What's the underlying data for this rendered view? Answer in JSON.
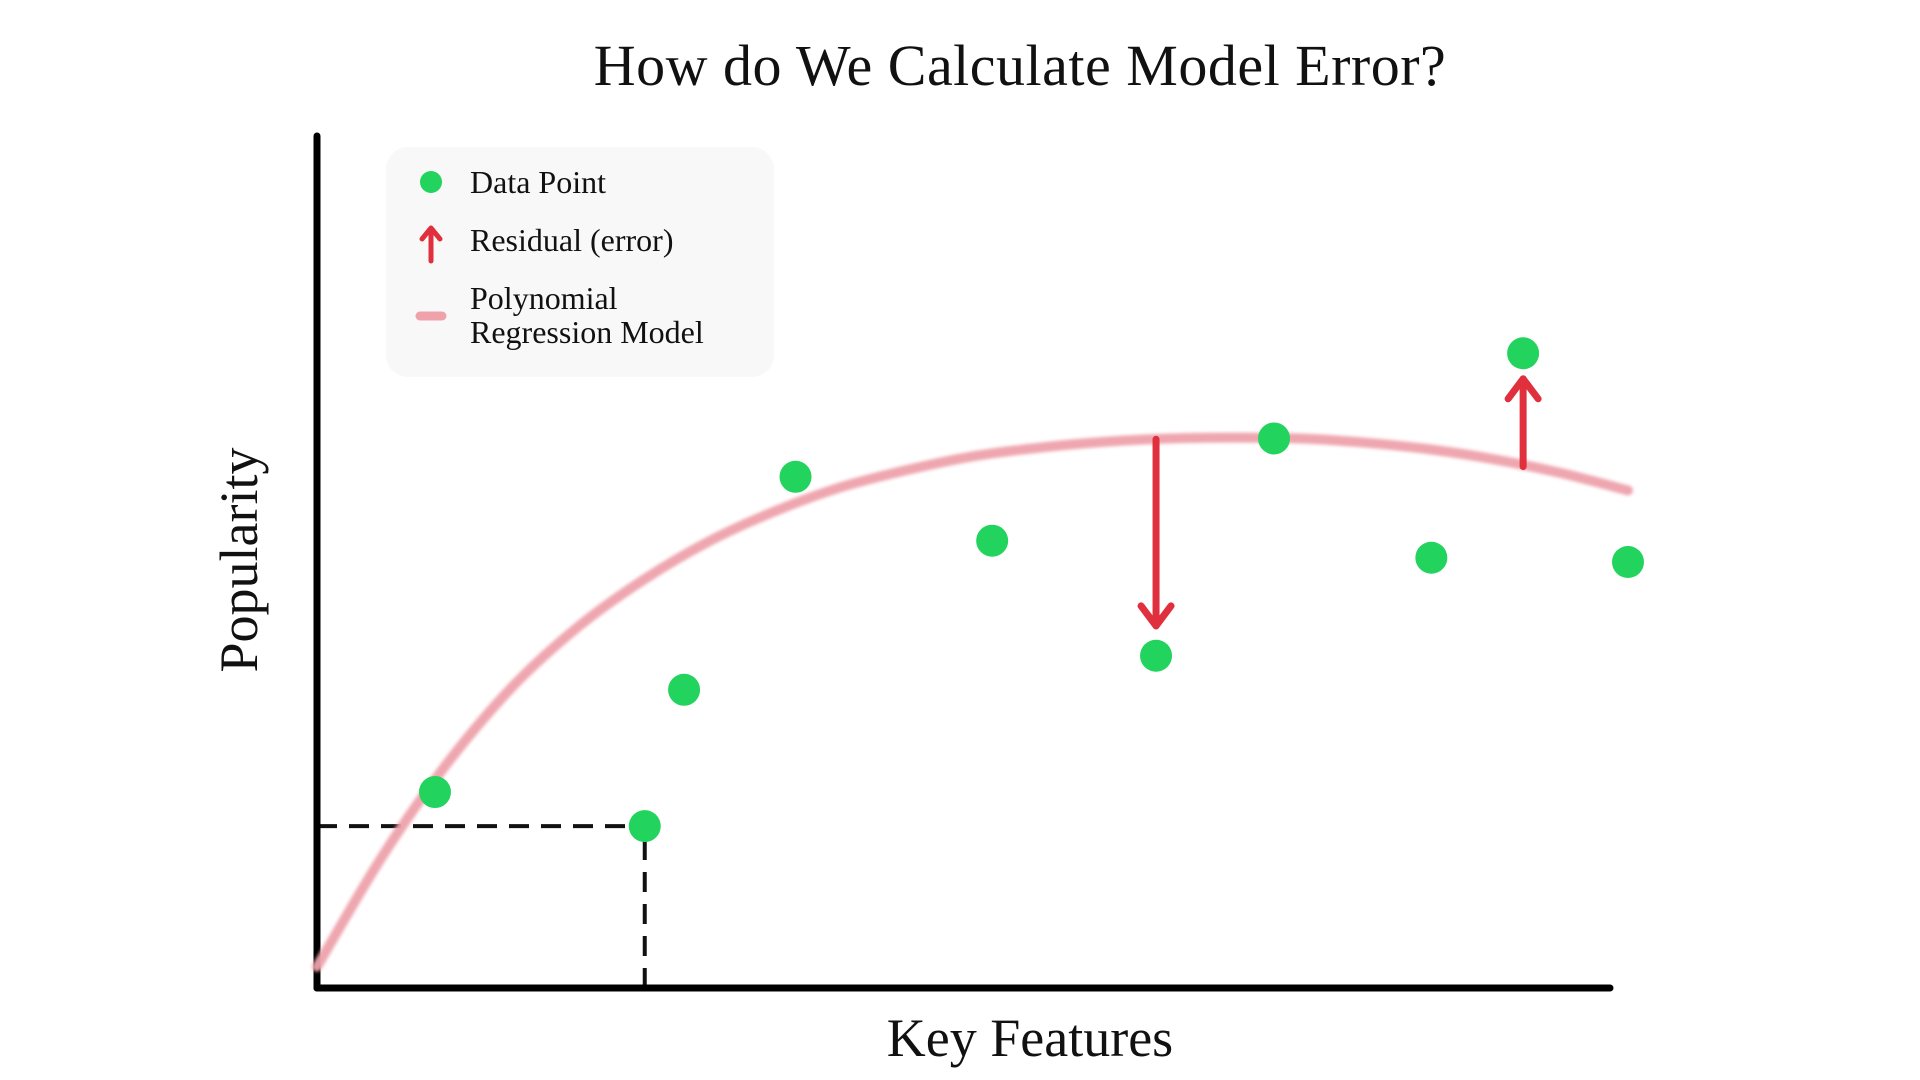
{
  "chart_data": {
    "type": "scatter",
    "title": "How do We Calculate Model Error?",
    "xlabel": "Key Features",
    "ylabel": "Popularity",
    "xlim": [
      0,
      10
    ],
    "ylim": [
      0,
      10
    ],
    "grid": false,
    "legend_position": "top-left",
    "legend": [
      {
        "label": "Data Point",
        "marker": "dot",
        "color": "#22d35e"
      },
      {
        "label": "Residual (error)",
        "marker": "arrow",
        "color": "#e0303e"
      },
      {
        "label": "Polynomial Regression Model",
        "marker": "line",
        "color": "#eea2ab"
      }
    ],
    "series": [
      {
        "name": "Data Point",
        "kind": "scatter",
        "color": "#22d35e",
        "points": [
          {
            "x": 0.9,
            "y": 2.3
          },
          {
            "x": 2.5,
            "y": 1.9
          },
          {
            "x": 2.8,
            "y": 3.5
          },
          {
            "x": 3.65,
            "y": 6.0
          },
          {
            "x": 5.15,
            "y": 5.25
          },
          {
            "x": 6.4,
            "y": 3.9
          },
          {
            "x": 7.3,
            "y": 6.45
          },
          {
            "x": 8.5,
            "y": 5.05
          },
          {
            "x": 9.2,
            "y": 7.45
          },
          {
            "x": 10.0,
            "y": 5.0
          }
        ]
      },
      {
        "name": "Polynomial Regression Model",
        "kind": "line",
        "color": "#eea2ab",
        "points": [
          {
            "x": 0.0,
            "y": 0.25
          },
          {
            "x": 0.5,
            "y": 1.55
          },
          {
            "x": 1.0,
            "y": 2.65
          },
          {
            "x": 1.5,
            "y": 3.55
          },
          {
            "x": 2.0,
            "y": 4.25
          },
          {
            "x": 2.5,
            "y": 4.8
          },
          {
            "x": 3.0,
            "y": 5.25
          },
          {
            "x": 3.5,
            "y": 5.6
          },
          {
            "x": 4.0,
            "y": 5.88
          },
          {
            "x": 4.5,
            "y": 6.08
          },
          {
            "x": 5.0,
            "y": 6.24
          },
          {
            "x": 5.5,
            "y": 6.34
          },
          {
            "x": 6.0,
            "y": 6.41
          },
          {
            "x": 6.5,
            "y": 6.45
          },
          {
            "x": 7.0,
            "y": 6.46
          },
          {
            "x": 7.5,
            "y": 6.45
          },
          {
            "x": 8.0,
            "y": 6.4
          },
          {
            "x": 8.5,
            "y": 6.32
          },
          {
            "x": 9.0,
            "y": 6.2
          },
          {
            "x": 9.5,
            "y": 6.04
          },
          {
            "x": 10.0,
            "y": 5.84
          }
        ]
      }
    ],
    "residuals": [
      {
        "x": 6.4,
        "from": 6.44,
        "to": 4.25,
        "direction": "down",
        "color": "#e0303e"
      },
      {
        "x": 9.2,
        "from": 6.12,
        "to": 7.15,
        "direction": "up",
        "color": "#e0303e"
      }
    ],
    "guides": [
      {
        "kind": "dashed-horizontal",
        "x_from": 0.0,
        "x_to": 2.5,
        "y": 1.9
      },
      {
        "kind": "dashed-vertical",
        "x": 2.5,
        "y_from": 0.0,
        "y_to": 1.9
      }
    ]
  }
}
